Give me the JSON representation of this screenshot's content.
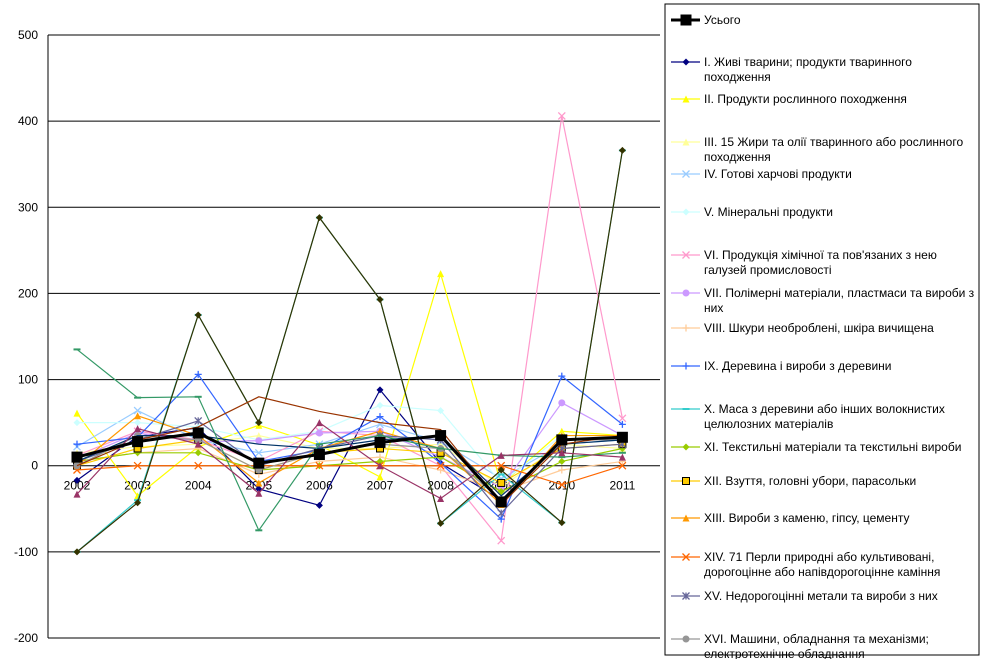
{
  "chart_data": {
    "type": "line",
    "categories": [
      "2002",
      "2003",
      "2004",
      "2005",
      "2006",
      "2007",
      "2008",
      "2009",
      "2010",
      "2011"
    ],
    "ylim": [
      -200,
      500
    ],
    "yticks": [
      -200,
      -100,
      0,
      100,
      200,
      300,
      400,
      500
    ],
    "grid": true,
    "legend_position": "right",
    "series": [
      {
        "name": "Усього",
        "color": "#000000",
        "marker": "square",
        "values": [
          10,
          28,
          38,
          3,
          13,
          27,
          35,
          -42,
          30,
          33
        ]
      },
      {
        "name": "I. Живі тварини; продукти тваринного походження",
        "color": "#000080",
        "marker": "diamond",
        "values": [
          -17,
          34,
          44,
          -27,
          -46,
          88,
          3,
          -40,
          30,
          30
        ]
      },
      {
        "name": "II. Продукти рослинного походження",
        "color": "#FFFF00",
        "marker": "triangle",
        "values": [
          61,
          -35,
          22,
          47,
          24,
          -13,
          223,
          -22,
          40,
          35
        ]
      },
      {
        "name": "III. 15 Жири та олії тваринного або рослинного походження",
        "color": "#FFFF99",
        "marker": "triangle",
        "values": [
          15,
          22,
          25,
          35,
          20,
          20,
          25,
          -25,
          25,
          20
        ]
      },
      {
        "name": "IV. Готові харчові продукти",
        "color": "#99CCFF",
        "marker": "x",
        "values": [
          22,
          64,
          30,
          15,
          25,
          48,
          28,
          -15,
          25,
          30
        ]
      },
      {
        "name": "V. Мінеральні продукти",
        "color": "#CCFFFF",
        "marker": "diamond",
        "values": [
          50,
          50,
          45,
          30,
          40,
          70,
          64,
          -20,
          35,
          35
        ]
      },
      {
        "name": "VI. Продукція хімічної та пов'язаних з нею галузей промисловості",
        "color": "#FF99CC",
        "marker": "x",
        "values": [
          12,
          40,
          30,
          5,
          40,
          35,
          0,
          -87,
          406,
          55
        ]
      },
      {
        "name": "VII. Полімерні матеріали, пластмаси та вироби з них",
        "color": "#CC99FF",
        "marker": "circle",
        "values": [
          8,
          38,
          28,
          29,
          38,
          40,
          10,
          -25,
          73,
          35
        ]
      },
      {
        "name": "VIII. Шкури необроблені, шкіра вичищена",
        "color": "#FFCC99",
        "marker": "plus",
        "values": [
          5,
          15,
          20,
          -10,
          5,
          10,
          -5,
          -30,
          -5,
          5
        ]
      },
      {
        "name": "IX. Деревина і вироби з деревини",
        "color": "#3366FF",
        "marker": "plus",
        "values": [
          25,
          33,
          106,
          5,
          18,
          57,
          3,
          -62,
          104,
          48
        ]
      },
      {
        "name": "X. Маса з деревини або інших волокнистих целюлозних матеріалів",
        "color": "#33CCCC",
        "marker": "dash",
        "values": [
          -100,
          -40,
          175,
          50,
          288,
          193,
          -67,
          -10,
          -66,
          366
        ]
      },
      {
        "name": "XI. Текстильні матеріали та текстильні вироби",
        "color": "#99CC00",
        "marker": "diamond",
        "values": [
          5,
          15,
          15,
          -5,
          0,
          5,
          10,
          -30,
          5,
          20
        ]
      },
      {
        "name": "XII. Взуття, головні убори, парасольки",
        "color": "#FFCC00",
        "marker": "square",
        "values": [
          0,
          20,
          30,
          -5,
          15,
          20,
          15,
          -20,
          20,
          25
        ]
      },
      {
        "name": "XIII. Вироби з каменю, гіпсу, цементу",
        "color": "#FF9900",
        "marker": "triangle",
        "values": [
          0,
          58,
          35,
          -20,
          20,
          40,
          20,
          -45,
          35,
          35
        ]
      },
      {
        "name": "XIV. 71 Перли природні або культивовані, дорогоцінне або напівдорогоцінне каміння",
        "color": "#FF6600",
        "marker": "x",
        "values": [
          -5,
          0,
          0,
          0,
          0,
          0,
          0,
          0,
          -22,
          0
        ]
      },
      {
        "name": "XV. Недорогоцінні метали та вироби з них",
        "color": "#666699",
        "marker": "star",
        "values": [
          5,
          30,
          52,
          0,
          20,
          35,
          30,
          -55,
          20,
          25
        ]
      },
      {
        "name": "XVI. Машини, обладнання та механізми; електротехнічне обладнання",
        "color": "#969696",
        "marker": "circle",
        "values": [
          0,
          35,
          30,
          -5,
          15,
          25,
          20,
          -40,
          30,
          30
        ]
      },
      {
        "name": "",
        "color": "#003366",
        "marker": "none",
        "values": [
          5,
          35,
          35,
          25,
          20,
          30,
          35,
          -35,
          25,
          30
        ]
      },
      {
        "name": "",
        "color": "#339966",
        "marker": "dash",
        "values": [
          135,
          79,
          80,
          -75,
          25,
          35,
          20,
          12,
          10,
          15
        ]
      },
      {
        "name": "",
        "color": "#333300",
        "marker": "diamond",
        "values": [
          -100,
          -43,
          175,
          50,
          288,
          193,
          -67,
          -5,
          -66,
          366
        ]
      },
      {
        "name": "",
        "color": "#993300",
        "marker": "none",
        "values": [
          0,
          30,
          45,
          80,
          63,
          50,
          42,
          -45,
          25,
          35
        ]
      },
      {
        "name": "",
        "color": "#993366",
        "marker": "triangle",
        "values": [
          -33,
          43,
          25,
          -32,
          50,
          0,
          -38,
          12,
          15,
          10
        ]
      }
    ]
  }
}
